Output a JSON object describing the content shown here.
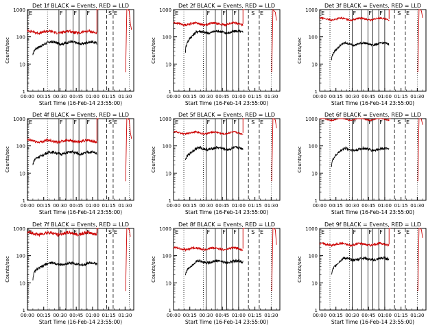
{
  "figure": {
    "start_time_label": "Start Time (16-Feb-14 23:55:00)",
    "ylabel": "Counts/sec"
  },
  "chart_data": [
    {
      "type": "line",
      "title": "Det 1f BLACK = Events, RED = LLD",
      "xlabel": "Start Time (16-Feb-14 23:55:00)",
      "ylabel": "Counts/sec",
      "y_scale": "log",
      "ylim": [
        1,
        1000
      ],
      "x_ticks": [
        "00:00",
        "00:15",
        "00:30",
        "00:45",
        "01:00",
        "01:15",
        "01:30"
      ],
      "y_ticks": [
        "1",
        "10",
        "100",
        "1000"
      ],
      "series": [
        {
          "name": "Events",
          "color": "#000000",
          "start_min": 5,
          "end_min": 64,
          "level": 60,
          "ramp_start": 18,
          "noise": 0.05
        },
        {
          "name": "LLD",
          "color": "#cc0000",
          "start_min": 0,
          "end_min": 64,
          "level": 150,
          "noise": 0.05,
          "tail": [
            5,
            1000,
            1000,
            900,
            300,
            180
          ]
        }
      ],
      "markers": {
        "dotted": [
          0.7,
          18.5,
          94
        ],
        "solid": [
          29,
          35.5,
          42,
          47.5,
          54,
          65
        ],
        "dashed": [
          73,
          79
        ],
        "letters": [
          {
            "t": "E",
            "x": 0.7
          },
          {
            "t": "F",
            "x": 29
          },
          {
            "t": "F",
            "x": 42
          },
          {
            "t": "F",
            "x": 54
          },
          {
            "t": "S",
            "x": 74
          },
          {
            "t": "E",
            "x": 79
          }
        ]
      }
    },
    {
      "type": "line",
      "title": "Det 2f BLACK = Events, RED = LLD",
      "xlabel": "Start Time (16-Feb-14 23:55:00)",
      "ylabel": "Counts/sec",
      "y_scale": "log",
      "ylim": [
        1,
        1000
      ],
      "x_ticks": [
        "00:00",
        "00:15",
        "00:30",
        "00:45",
        "01:00",
        "01:15",
        "01:30"
      ],
      "y_ticks": [
        "1",
        "10",
        "100",
        "1000"
      ],
      "series": [
        {
          "name": "Events",
          "color": "#000000",
          "start_min": 11,
          "end_min": 64,
          "level": 150,
          "ramp_start": 30,
          "noise": 0.05
        },
        {
          "name": "LLD",
          "color": "#cc0000",
          "start_min": 0,
          "end_min": 64,
          "level": 300,
          "noise": 0.04,
          "tail": [
            5,
            1000,
            900,
            800,
            400
          ]
        }
      ],
      "markers": {
        "dotted": [
          9.5,
          27.5,
          90
        ],
        "solid": [
          30,
          38.5,
          44.5,
          49,
          54.5,
          60
        ],
        "dashed": [
          69,
          79
        ],
        "letters": [
          {
            "t": "E",
            "x": 0.7
          },
          {
            "t": "F",
            "x": 30
          },
          {
            "t": "F",
            "x": 44.5
          },
          {
            "t": "F",
            "x": 54.5
          },
          {
            "t": "S",
            "x": 71
          },
          {
            "t": "E",
            "x": 79
          }
        ]
      }
    },
    {
      "type": "line",
      "title": "Det 3f BLACK = Events, RED = LLD",
      "xlabel": "Start Time (16-Feb-14 23:55:00)",
      "ylabel": "Counts/sec",
      "y_scale": "log",
      "ylim": [
        1,
        1000
      ],
      "x_ticks": [
        "00:00",
        "00:15",
        "00:30",
        "00:45",
        "01:00",
        "01:15",
        "01:30"
      ],
      "y_ticks": [
        "1",
        "10",
        "100",
        "1000"
      ],
      "series": [
        {
          "name": "Events",
          "color": "#000000",
          "start_min": 11,
          "end_min": 64,
          "level": 55,
          "ramp_start": 15,
          "noise": 0.04
        },
        {
          "name": "LLD",
          "color": "#cc0000",
          "start_min": 0,
          "end_min": 64,
          "level": 450,
          "noise": 0.03,
          "tail": [
            5,
            1000,
            1000,
            900,
            500
          ]
        }
      ],
      "markers": {
        "dotted": [
          9.5,
          27.5,
          90
        ],
        "solid": [
          30,
          38.5,
          44.5,
          49,
          54.5,
          60
        ],
        "dashed": [
          69,
          79
        ],
        "letters": [
          {
            "t": "E",
            "x": 0.7
          },
          {
            "t": "F",
            "x": 30
          },
          {
            "t": "F",
            "x": 44.5
          },
          {
            "t": "F",
            "x": 54.5
          },
          {
            "t": "S",
            "x": 71
          },
          {
            "t": "E",
            "x": 79
          }
        ]
      }
    },
    {
      "type": "line",
      "title": "Det 4f BLACK = Events, RED = LLD",
      "xlabel": "Start Time (16-Feb-14 23:55:00)",
      "ylabel": "Counts/sec",
      "y_scale": "log",
      "ylim": [
        1,
        1000
      ],
      "x_ticks": [
        "00:00",
        "00:15",
        "00:30",
        "00:45",
        "01:00",
        "01:15",
        "01:30"
      ],
      "y_ticks": [
        "1",
        "10",
        "100",
        "1000"
      ],
      "series": [
        {
          "name": "Events",
          "color": "#000000",
          "start_min": 5,
          "end_min": 64,
          "level": 55,
          "ramp_start": 18,
          "noise": 0.05
        },
        {
          "name": "LLD",
          "color": "#cc0000",
          "start_min": 0,
          "end_min": 64,
          "level": 150,
          "noise": 0.05,
          "tail": [
            5,
            1000,
            1000,
            900,
            300,
            180
          ]
        }
      ],
      "markers": {
        "dotted": [
          0.7,
          18.5,
          94
        ],
        "solid": [
          29,
          35.5,
          42,
          47.5,
          54,
          65
        ],
        "dashed": [
          73,
          79
        ],
        "letters": [
          {
            "t": "E",
            "x": 0.7
          },
          {
            "t": "F",
            "x": 29
          },
          {
            "t": "F",
            "x": 42
          },
          {
            "t": "F",
            "x": 54
          },
          {
            "t": "S",
            "x": 74
          },
          {
            "t": "E",
            "x": 79
          }
        ]
      }
    },
    {
      "type": "line",
      "title": "Det 5f BLACK = Events, RED = LLD",
      "xlabel": "Start Time (16-Feb-14 23:55:00)",
      "ylabel": "Counts/sec",
      "y_scale": "log",
      "ylim": [
        1,
        1000
      ],
      "x_ticks": [
        "00:00",
        "00:15",
        "00:30",
        "00:45",
        "01:00",
        "01:15",
        "01:30"
      ],
      "y_ticks": [
        "1",
        "10",
        "100",
        "1000"
      ],
      "series": [
        {
          "name": "Events",
          "color": "#000000",
          "start_min": 11,
          "end_min": 64,
          "level": 80,
          "ramp_start": 30,
          "noise": 0.05
        },
        {
          "name": "LLD",
          "color": "#cc0000",
          "start_min": 0,
          "end_min": 64,
          "level": 300,
          "noise": 0.03,
          "tail": [
            5,
            1000,
            1000,
            900,
            450
          ]
        }
      ],
      "markers": {
        "dotted": [
          9.5,
          27.5,
          90
        ],
        "solid": [
          30,
          38.5,
          44.5,
          49,
          54.5,
          60
        ],
        "dashed": [
          69,
          79
        ],
        "letters": [
          {
            "t": "E",
            "x": 0.7
          },
          {
            "t": "F",
            "x": 30
          },
          {
            "t": "F",
            "x": 44.5
          },
          {
            "t": "F",
            "x": 54.5
          },
          {
            "t": "S",
            "x": 71
          },
          {
            "t": "E",
            "x": 79
          }
        ]
      }
    },
    {
      "type": "line",
      "title": "Det 6f BLACK = Events, RED = LLD",
      "xlabel": "Start Time (16-Feb-14 23:55:00)",
      "ylabel": "Counts/sec",
      "y_scale": "log",
      "ylim": [
        1,
        1000
      ],
      "x_ticks": [
        "00:00",
        "00:15",
        "00:30",
        "00:45",
        "01:00",
        "01:15",
        "01:30"
      ],
      "y_ticks": [
        "1",
        "10",
        "100",
        "1000"
      ],
      "series": [
        {
          "name": "Events",
          "color": "#000000",
          "start_min": 11,
          "end_min": 64,
          "level": 75,
          "ramp_start": 20,
          "noise": 0.05
        },
        {
          "name": "LLD",
          "color": "#cc0000",
          "start_min": 0,
          "end_min": 64,
          "level": 950,
          "noise": 0.02,
          "tail": [
            5,
            1000,
            1000,
            950,
            600
          ]
        }
      ],
      "markers": {
        "dotted": [
          9.5,
          27.5,
          90
        ],
        "solid": [
          30,
          38.5,
          44.5,
          49,
          54.5,
          60
        ],
        "dashed": [
          69,
          79
        ],
        "letters": [
          {
            "t": "E",
            "x": 0.7
          },
          {
            "t": "F",
            "x": 30
          },
          {
            "t": "F",
            "x": 44.5
          },
          {
            "t": "F",
            "x": 54.5
          },
          {
            "t": "S",
            "x": 71
          },
          {
            "t": "E",
            "x": 79
          }
        ]
      }
    },
    {
      "type": "line",
      "title": "Det 7f BLACK = Events, RED = LLD",
      "xlabel": "Start Time (16-Feb-14 23:55:00)",
      "ylabel": "Counts/sec",
      "y_scale": "log",
      "ylim": [
        1,
        1000
      ],
      "x_ticks": [
        "00:00",
        "00:15",
        "00:30",
        "00:45",
        "01:00",
        "01:15",
        "01:30"
      ],
      "y_ticks": [
        "1",
        "10",
        "100",
        "1000"
      ],
      "series": [
        {
          "name": "Events",
          "color": "#000000",
          "start_min": 5,
          "end_min": 64,
          "level": 50,
          "ramp_start": 12,
          "noise": 0.05
        },
        {
          "name": "LLD",
          "color": "#cc0000",
          "start_min": 0,
          "end_min": 64,
          "level": 650,
          "noise": 0.06,
          "tail": [
            5,
            1000,
            1000,
            900,
            500
          ]
        }
      ],
      "markers": {
        "dotted": [
          0.7,
          18.5,
          94
        ],
        "solid": [
          29,
          35.5,
          42,
          47.5,
          54,
          65
        ],
        "dashed": [
          73,
          79
        ],
        "letters": [
          {
            "t": "E",
            "x": 0.7
          },
          {
            "t": "F",
            "x": 29
          },
          {
            "t": "F",
            "x": 42
          },
          {
            "t": "F",
            "x": 54
          },
          {
            "t": "S",
            "x": 74
          },
          {
            "t": "E",
            "x": 79
          }
        ]
      }
    },
    {
      "type": "line",
      "title": "Det 8f BLACK = Events, RED = LLD",
      "xlabel": "Start Time (16-Feb-14 23:55:00)",
      "ylabel": "Counts/sec",
      "y_scale": "log",
      "ylim": [
        1,
        1000
      ],
      "x_ticks": [
        "00:00",
        "00:15",
        "00:30",
        "00:45",
        "01:00",
        "01:15",
        "01:30"
      ],
      "y_ticks": [
        "1",
        "10",
        "100",
        "1000"
      ],
      "series": [
        {
          "name": "Events",
          "color": "#000000",
          "start_min": 11,
          "end_min": 64,
          "level": 60,
          "ramp_start": 20,
          "noise": 0.05
        },
        {
          "name": "LLD",
          "color": "#cc0000",
          "start_min": 0,
          "end_min": 64,
          "level": 180,
          "noise": 0.04,
          "tail": [
            5,
            1000,
            1000,
            900,
            250
          ]
        }
      ],
      "markers": {
        "dotted": [
          9.5,
          27.5,
          90
        ],
        "solid": [
          30,
          38.5,
          44.5,
          49,
          54.5,
          60
        ],
        "dashed": [
          69,
          79
        ],
        "letters": [
          {
            "t": "E",
            "x": 0.7
          },
          {
            "t": "F",
            "x": 30
          },
          {
            "t": "F",
            "x": 44.5
          },
          {
            "t": "F",
            "x": 54.5
          },
          {
            "t": "S",
            "x": 71
          },
          {
            "t": "E",
            "x": 79
          }
        ]
      }
    },
    {
      "type": "line",
      "title": "Det 9f BLACK = Events, RED = LLD",
      "xlabel": "Start Time (16-Feb-14 23:55:00)",
      "ylabel": "Counts/sec",
      "y_scale": "log",
      "ylim": [
        1,
        1000
      ],
      "x_ticks": [
        "00:00",
        "00:15",
        "00:30",
        "00:45",
        "01:00",
        "01:15",
        "01:30"
      ],
      "y_ticks": [
        "1",
        "10",
        "100",
        "1000"
      ],
      "series": [
        {
          "name": "Events",
          "color": "#000000",
          "start_min": 11,
          "end_min": 64,
          "level": 75,
          "ramp_start": 20,
          "noise": 0.05
        },
        {
          "name": "LLD",
          "color": "#cc0000",
          "start_min": 0,
          "end_min": 64,
          "level": 260,
          "noise": 0.04,
          "tail": [
            5,
            1000,
            1000,
            900,
            450
          ]
        }
      ],
      "markers": {
        "dotted": [
          9.5,
          27.5,
          90
        ],
        "solid": [
          30,
          38.5,
          44.5,
          49,
          54.5,
          60
        ],
        "dashed": [
          69,
          79
        ],
        "letters": [
          {
            "t": "E",
            "x": 0.7
          },
          {
            "t": "F",
            "x": 30
          },
          {
            "t": "F",
            "x": 44.5
          },
          {
            "t": "F",
            "x": 54.5
          },
          {
            "t": "S",
            "x": 71
          },
          {
            "t": "E",
            "x": 79
          }
        ]
      }
    }
  ]
}
